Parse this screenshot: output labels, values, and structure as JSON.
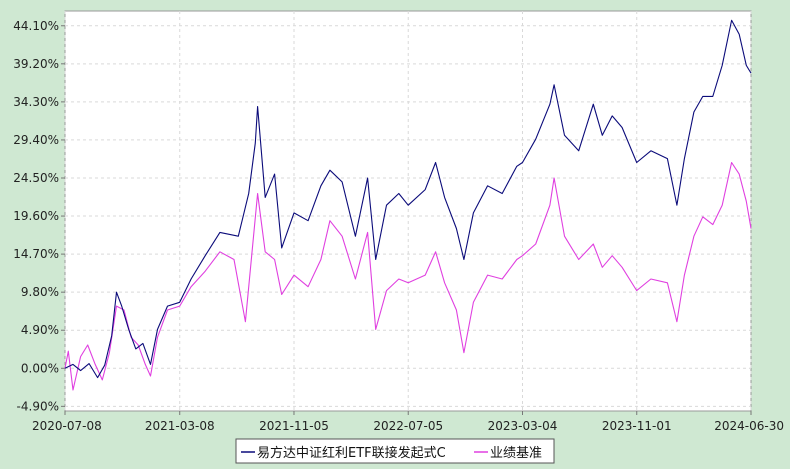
{
  "chart_data": {
    "type": "line",
    "title": "",
    "xlabel": "",
    "ylabel": "",
    "ylim": [
      -5.5,
      46.0
    ],
    "y_ticks": [
      -4.9,
      0.0,
      4.9,
      9.8,
      14.7,
      19.6,
      24.5,
      29.4,
      34.3,
      39.2,
      44.1
    ],
    "y_tick_labels": [
      "-4.90%",
      "0.00%",
      "4.90%",
      "9.80%",
      "14.70%",
      "19.60%",
      "24.50%",
      "29.40%",
      "34.30%",
      "39.20%",
      "44.10%"
    ],
    "x_tick_labels": [
      "2020-07-08",
      "2021-03-08",
      "2021-11-05",
      "2022-07-05",
      "2023-03-04",
      "2023-11-01",
      "2024-06-30"
    ],
    "x_range": [
      "2020-07-08",
      "2024-06-30"
    ],
    "grid": true,
    "legend_position": "bottom",
    "colors": {
      "fund": "#0b0b7a",
      "benchmark": "#e040e0",
      "plot_bg": "#ffffff",
      "page_bg": "#cfe8d2",
      "grid": "#d9d9d9"
    },
    "series": [
      {
        "name": "易方达中证红利ETF联接发起式C",
        "points": [
          [
            "2020-07-08",
            0.0
          ],
          [
            "2020-07-25",
            0.5
          ],
          [
            "2020-08-10",
            -0.3
          ],
          [
            "2020-08-28",
            0.6
          ],
          [
            "2020-09-15",
            -1.2
          ],
          [
            "2020-09-30",
            0.4
          ],
          [
            "2020-10-15",
            4.2
          ],
          [
            "2020-10-25",
            9.8
          ],
          [
            "2020-11-05",
            8.0
          ],
          [
            "2020-11-20",
            5.0
          ],
          [
            "2020-12-05",
            2.5
          ],
          [
            "2020-12-20",
            3.2
          ],
          [
            "2021-01-05",
            0.5
          ],
          [
            "2021-01-20",
            5.0
          ],
          [
            "2021-02-10",
            8.0
          ],
          [
            "2021-03-08",
            8.5
          ],
          [
            "2021-04-01",
            11.5
          ],
          [
            "2021-05-01",
            14.5
          ],
          [
            "2021-06-01",
            17.5
          ],
          [
            "2021-07-10",
            17.0
          ],
          [
            "2021-08-01",
            22.5
          ],
          [
            "2021-08-15",
            29.0
          ],
          [
            "2021-08-20",
            33.7
          ],
          [
            "2021-09-05",
            22.0
          ],
          [
            "2021-09-25",
            25.0
          ],
          [
            "2021-10-10",
            15.5
          ],
          [
            "2021-11-05",
            20.0
          ],
          [
            "2021-12-05",
            19.0
          ],
          [
            "2022-01-01",
            23.5
          ],
          [
            "2022-01-20",
            25.5
          ],
          [
            "2022-02-15",
            24.0
          ],
          [
            "2022-03-15",
            17.0
          ],
          [
            "2022-04-10",
            24.5
          ],
          [
            "2022-04-27",
            14.0
          ],
          [
            "2022-05-20",
            21.0
          ],
          [
            "2022-06-15",
            22.5
          ],
          [
            "2022-07-05",
            21.0
          ],
          [
            "2022-08-10",
            23.0
          ],
          [
            "2022-09-01",
            26.5
          ],
          [
            "2022-09-20",
            22.0
          ],
          [
            "2022-10-15",
            18.0
          ],
          [
            "2022-10-31",
            14.0
          ],
          [
            "2022-11-20",
            20.0
          ],
          [
            "2022-12-20",
            23.5
          ],
          [
            "2023-01-20",
            22.5
          ],
          [
            "2023-02-20",
            26.0
          ],
          [
            "2023-03-04",
            26.5
          ],
          [
            "2023-04-01",
            29.5
          ],
          [
            "2023-05-01",
            34.0
          ],
          [
            "2023-05-10",
            36.5
          ],
          [
            "2023-06-01",
            30.0
          ],
          [
            "2023-07-01",
            28.0
          ],
          [
            "2023-08-01",
            34.0
          ],
          [
            "2023-08-20",
            30.0
          ],
          [
            "2023-09-10",
            32.5
          ],
          [
            "2023-10-01",
            31.0
          ],
          [
            "2023-11-01",
            26.5
          ],
          [
            "2023-12-01",
            28.0
          ],
          [
            "2024-01-05",
            27.0
          ],
          [
            "2024-01-25",
            21.0
          ],
          [
            "2024-02-10",
            27.0
          ],
          [
            "2024-03-01",
            33.0
          ],
          [
            "2024-03-20",
            35.0
          ],
          [
            "2024-04-10",
            35.0
          ],
          [
            "2024-04-30",
            39.0
          ],
          [
            "2024-05-20",
            44.8
          ],
          [
            "2024-06-05",
            43.0
          ],
          [
            "2024-06-20",
            39.0
          ],
          [
            "2024-06-30",
            38.0
          ]
        ]
      },
      {
        "name": "业绩基准",
        "points": [
          [
            "2020-07-08",
            0.0
          ],
          [
            "2020-07-15",
            2.2
          ],
          [
            "2020-07-25",
            -2.8
          ],
          [
            "2020-08-10",
            1.5
          ],
          [
            "2020-08-25",
            3.0
          ],
          [
            "2020-09-10",
            0.5
          ],
          [
            "2020-09-25",
            -1.5
          ],
          [
            "2020-10-10",
            2.0
          ],
          [
            "2020-10-25",
            8.0
          ],
          [
            "2020-11-10",
            7.5
          ],
          [
            "2020-11-25",
            4.0
          ],
          [
            "2020-12-10",
            3.0
          ],
          [
            "2020-12-25",
            0.5
          ],
          [
            "2021-01-05",
            -1.0
          ],
          [
            "2021-01-20",
            4.0
          ],
          [
            "2021-02-10",
            7.5
          ],
          [
            "2021-03-08",
            8.0
          ],
          [
            "2021-04-01",
            10.5
          ],
          [
            "2021-05-01",
            12.5
          ],
          [
            "2021-06-01",
            15.0
          ],
          [
            "2021-07-01",
            14.0
          ],
          [
            "2021-07-25",
            6.0
          ],
          [
            "2021-08-20",
            22.5
          ],
          [
            "2021-09-05",
            15.0
          ],
          [
            "2021-09-25",
            14.0
          ],
          [
            "2021-10-10",
            9.5
          ],
          [
            "2021-11-05",
            12.0
          ],
          [
            "2021-12-05",
            10.5
          ],
          [
            "2022-01-01",
            14.0
          ],
          [
            "2022-01-20",
            19.0
          ],
          [
            "2022-02-15",
            17.0
          ],
          [
            "2022-03-15",
            11.5
          ],
          [
            "2022-04-10",
            17.5
          ],
          [
            "2022-04-27",
            5.0
          ],
          [
            "2022-05-20",
            10.0
          ],
          [
            "2022-06-15",
            11.5
          ],
          [
            "2022-07-05",
            11.0
          ],
          [
            "2022-08-10",
            12.0
          ],
          [
            "2022-09-01",
            15.0
          ],
          [
            "2022-09-20",
            11.0
          ],
          [
            "2022-10-15",
            7.5
          ],
          [
            "2022-10-31",
            2.0
          ],
          [
            "2022-11-20",
            8.5
          ],
          [
            "2022-12-20",
            12.0
          ],
          [
            "2023-01-20",
            11.5
          ],
          [
            "2023-02-20",
            14.0
          ],
          [
            "2023-03-04",
            14.5
          ],
          [
            "2023-04-01",
            16.0
          ],
          [
            "2023-05-01",
            21.0
          ],
          [
            "2023-05-10",
            24.5
          ],
          [
            "2023-06-01",
            17.0
          ],
          [
            "2023-07-01",
            14.0
          ],
          [
            "2023-08-01",
            16.0
          ],
          [
            "2023-08-20",
            13.0
          ],
          [
            "2023-09-10",
            14.5
          ],
          [
            "2023-10-01",
            13.0
          ],
          [
            "2023-11-01",
            10.0
          ],
          [
            "2023-12-01",
            11.5
          ],
          [
            "2024-01-05",
            11.0
          ],
          [
            "2024-01-25",
            6.0
          ],
          [
            "2024-02-10",
            12.0
          ],
          [
            "2024-03-01",
            17.0
          ],
          [
            "2024-03-20",
            19.5
          ],
          [
            "2024-04-10",
            18.5
          ],
          [
            "2024-04-30",
            21.0
          ],
          [
            "2024-05-20",
            26.5
          ],
          [
            "2024-06-05",
            25.0
          ],
          [
            "2024-06-20",
            21.5
          ],
          [
            "2024-06-30",
            18.0
          ]
        ]
      }
    ]
  }
}
